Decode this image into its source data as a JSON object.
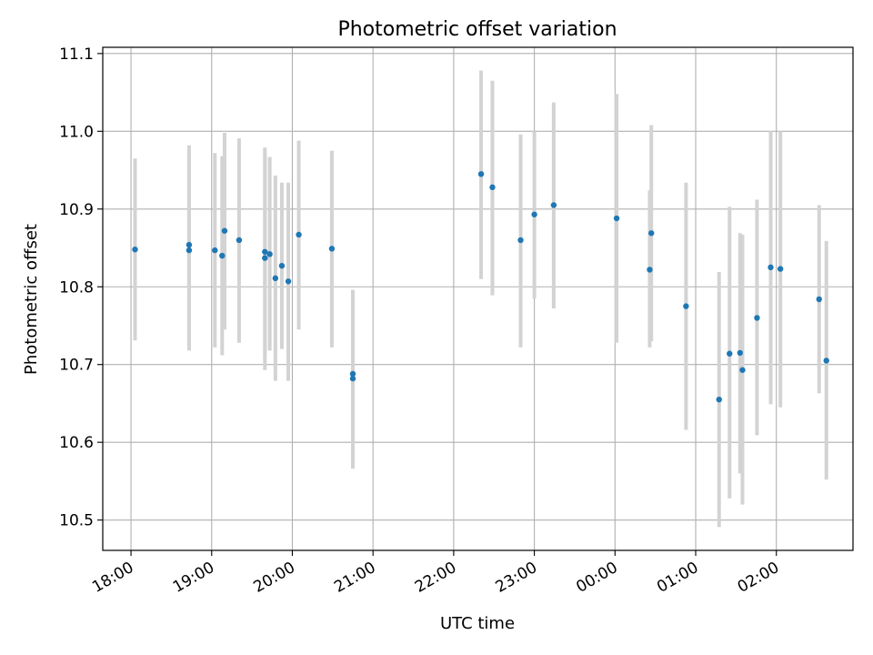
{
  "chart_data": {
    "type": "scatter",
    "title": "Photometric offset variation",
    "xlabel": "UTC time",
    "ylabel": "Photometric offset",
    "x_axis": {
      "kind": "time",
      "unit": "hours after 18:00 UTC",
      "range": [
        -0.35,
        8.95
      ],
      "ticks": [
        {
          "value": 0,
          "label": "18:00"
        },
        {
          "value": 1,
          "label": "19:00"
        },
        {
          "value": 2,
          "label": "20:00"
        },
        {
          "value": 3,
          "label": "21:00"
        },
        {
          "value": 4,
          "label": "22:00"
        },
        {
          "value": 5,
          "label": "23:00"
        },
        {
          "value": 6,
          "label": "00:00"
        },
        {
          "value": 7,
          "label": "01:00"
        },
        {
          "value": 8,
          "label": "02:00"
        }
      ]
    },
    "y_axis": {
      "range": [
        10.461,
        11.108
      ],
      "ticks": [
        {
          "value": 10.5,
          "label": "10.5"
        },
        {
          "value": 10.6,
          "label": "10.6"
        },
        {
          "value": 10.7,
          "label": "10.7"
        },
        {
          "value": 10.8,
          "label": "10.8"
        },
        {
          "value": 10.9,
          "label": "10.9"
        },
        {
          "value": 11.0,
          "label": "11.0"
        },
        {
          "value": 11.1,
          "label": "11.1"
        }
      ]
    },
    "grid": true,
    "colors": {
      "marker": "#1f77b4",
      "errorbar": "#d3d3d3",
      "grid": "#b0b0b0"
    },
    "points": [
      {
        "x": 0.05,
        "y": 10.848,
        "lo": 10.731,
        "hi": 10.965
      },
      {
        "x": 0.72,
        "y": 10.854,
        "lo": 10.72,
        "hi": 10.982
      },
      {
        "x": 0.72,
        "y": 10.847,
        "lo": 10.718,
        "hi": 10.975
      },
      {
        "x": 1.04,
        "y": 10.847,
        "lo": 10.722,
        "hi": 10.972
      },
      {
        "x": 1.13,
        "y": 10.84,
        "lo": 10.712,
        "hi": 10.968
      },
      {
        "x": 1.16,
        "y": 10.872,
        "lo": 10.745,
        "hi": 10.998
      },
      {
        "x": 1.34,
        "y": 10.86,
        "lo": 10.728,
        "hi": 10.991
      },
      {
        "x": 1.66,
        "y": 10.845,
        "lo": 10.712,
        "hi": 10.979
      },
      {
        "x": 1.66,
        "y": 10.837,
        "lo": 10.693,
        "hi": 10.972
      },
      {
        "x": 1.72,
        "y": 10.842,
        "lo": 10.718,
        "hi": 10.967
      },
      {
        "x": 1.79,
        "y": 10.811,
        "lo": 10.679,
        "hi": 10.943
      },
      {
        "x": 1.87,
        "y": 10.827,
        "lo": 10.72,
        "hi": 10.934
      },
      {
        "x": 1.95,
        "y": 10.807,
        "lo": 10.679,
        "hi": 10.934
      },
      {
        "x": 2.08,
        "y": 10.867,
        "lo": 10.745,
        "hi": 10.988
      },
      {
        "x": 2.49,
        "y": 10.849,
        "lo": 10.722,
        "hi": 10.975
      },
      {
        "x": 2.75,
        "y": 10.688,
        "lo": 10.58,
        "hi": 10.796
      },
      {
        "x": 2.75,
        "y": 10.682,
        "lo": 10.566,
        "hi": 10.794
      },
      {
        "x": 4.34,
        "y": 10.945,
        "lo": 10.81,
        "hi": 11.078
      },
      {
        "x": 4.48,
        "y": 10.928,
        "lo": 10.789,
        "hi": 11.065
      },
      {
        "x": 4.83,
        "y": 10.86,
        "lo": 10.722,
        "hi": 10.996
      },
      {
        "x": 5.0,
        "y": 10.893,
        "lo": 10.785,
        "hi": 11.0
      },
      {
        "x": 5.24,
        "y": 10.905,
        "lo": 10.772,
        "hi": 11.037
      },
      {
        "x": 6.02,
        "y": 10.888,
        "lo": 10.728,
        "hi": 11.048
      },
      {
        "x": 6.43,
        "y": 10.822,
        "lo": 10.722,
        "hi": 10.924
      },
      {
        "x": 6.45,
        "y": 10.869,
        "lo": 10.73,
        "hi": 11.008
      },
      {
        "x": 6.88,
        "y": 10.775,
        "lo": 10.616,
        "hi": 10.934
      },
      {
        "x": 7.29,
        "y": 10.655,
        "lo": 10.491,
        "hi": 10.819
      },
      {
        "x": 7.42,
        "y": 10.714,
        "lo": 10.528,
        "hi": 10.903
      },
      {
        "x": 7.55,
        "y": 10.715,
        "lo": 10.56,
        "hi": 10.869
      },
      {
        "x": 7.58,
        "y": 10.693,
        "lo": 10.52,
        "hi": 10.867
      },
      {
        "x": 7.76,
        "y": 10.76,
        "lo": 10.609,
        "hi": 10.912
      },
      {
        "x": 7.93,
        "y": 10.825,
        "lo": 10.649,
        "hi": 11.0
      },
      {
        "x": 8.05,
        "y": 10.823,
        "lo": 10.645,
        "hi": 11.0
      },
      {
        "x": 8.53,
        "y": 10.784,
        "lo": 10.663,
        "hi": 10.905
      },
      {
        "x": 8.62,
        "y": 10.705,
        "lo": 10.552,
        "hi": 10.859
      }
    ]
  }
}
